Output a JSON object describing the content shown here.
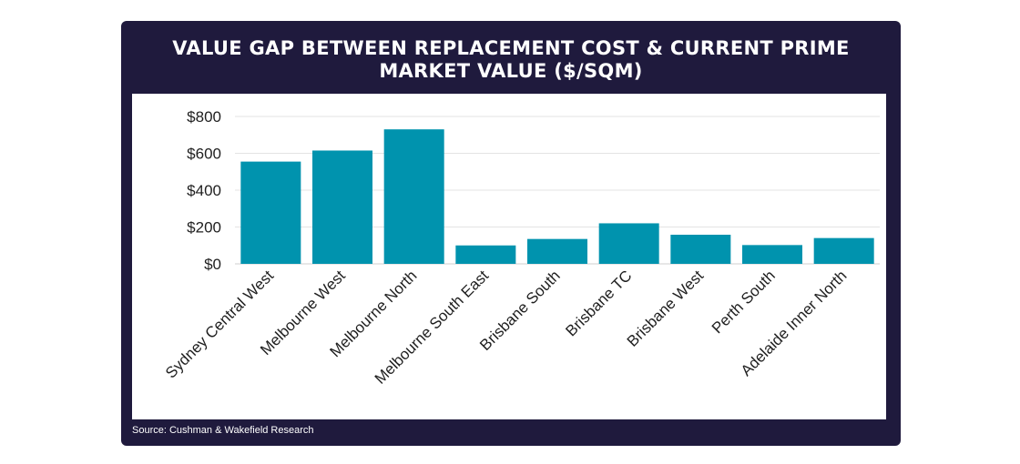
{
  "title_lines": [
    "VALUE GAP BETWEEN REPLACEMENT COST & CURRENT PRIME",
    "MARKET VALUE ($/SQM)"
  ],
  "source": "Source: Cushman & Wakefield Research",
  "colors": {
    "frame": "#1f1a3d",
    "bar": "#0093ae",
    "grid": "#e3e3e3",
    "text": "#1f1f1f"
  },
  "chart_data": {
    "type": "bar",
    "title": "VALUE GAP BETWEEN REPLACEMENT COST & CURRENT PRIME MARKET VALUE ($/SQM)",
    "categories": [
      "Sydney Central West",
      "Melbourne West",
      "Melbourne North",
      "Melbourne South East",
      "Brisbane South",
      "Brisbane TC",
      "Brisbane West",
      "Perth South",
      "Adelaide Inner North"
    ],
    "values": [
      555,
      615,
      730,
      100,
      135,
      220,
      158,
      102,
      140
    ],
    "ylim": [
      0,
      800
    ],
    "yticks": [
      0,
      200,
      400,
      600,
      800
    ],
    "ytick_labels": [
      "$0",
      "$200",
      "$400",
      "$600",
      "$800"
    ],
    "xlabel": "",
    "ylabel": "",
    "grid": true,
    "legend": false
  }
}
